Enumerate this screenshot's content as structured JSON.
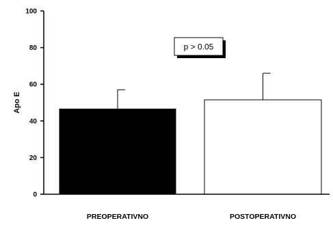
{
  "chart_data": {
    "type": "bar",
    "title": "",
    "xlabel": "",
    "ylabel": "Apo E",
    "ylim": [
      0,
      100
    ],
    "yticks": [
      0,
      20,
      40,
      60,
      80,
      100
    ],
    "categories": [
      "PREOPERATIVNO",
      "POSTOPERATIVNO"
    ],
    "values": [
      46.5,
      51.5
    ],
    "error_upper": [
      10.5,
      14.5
    ],
    "bar_fill": [
      "#000000",
      "#ffffff"
    ],
    "annotation": "p > 0.05",
    "grid": false,
    "legend": "none"
  }
}
